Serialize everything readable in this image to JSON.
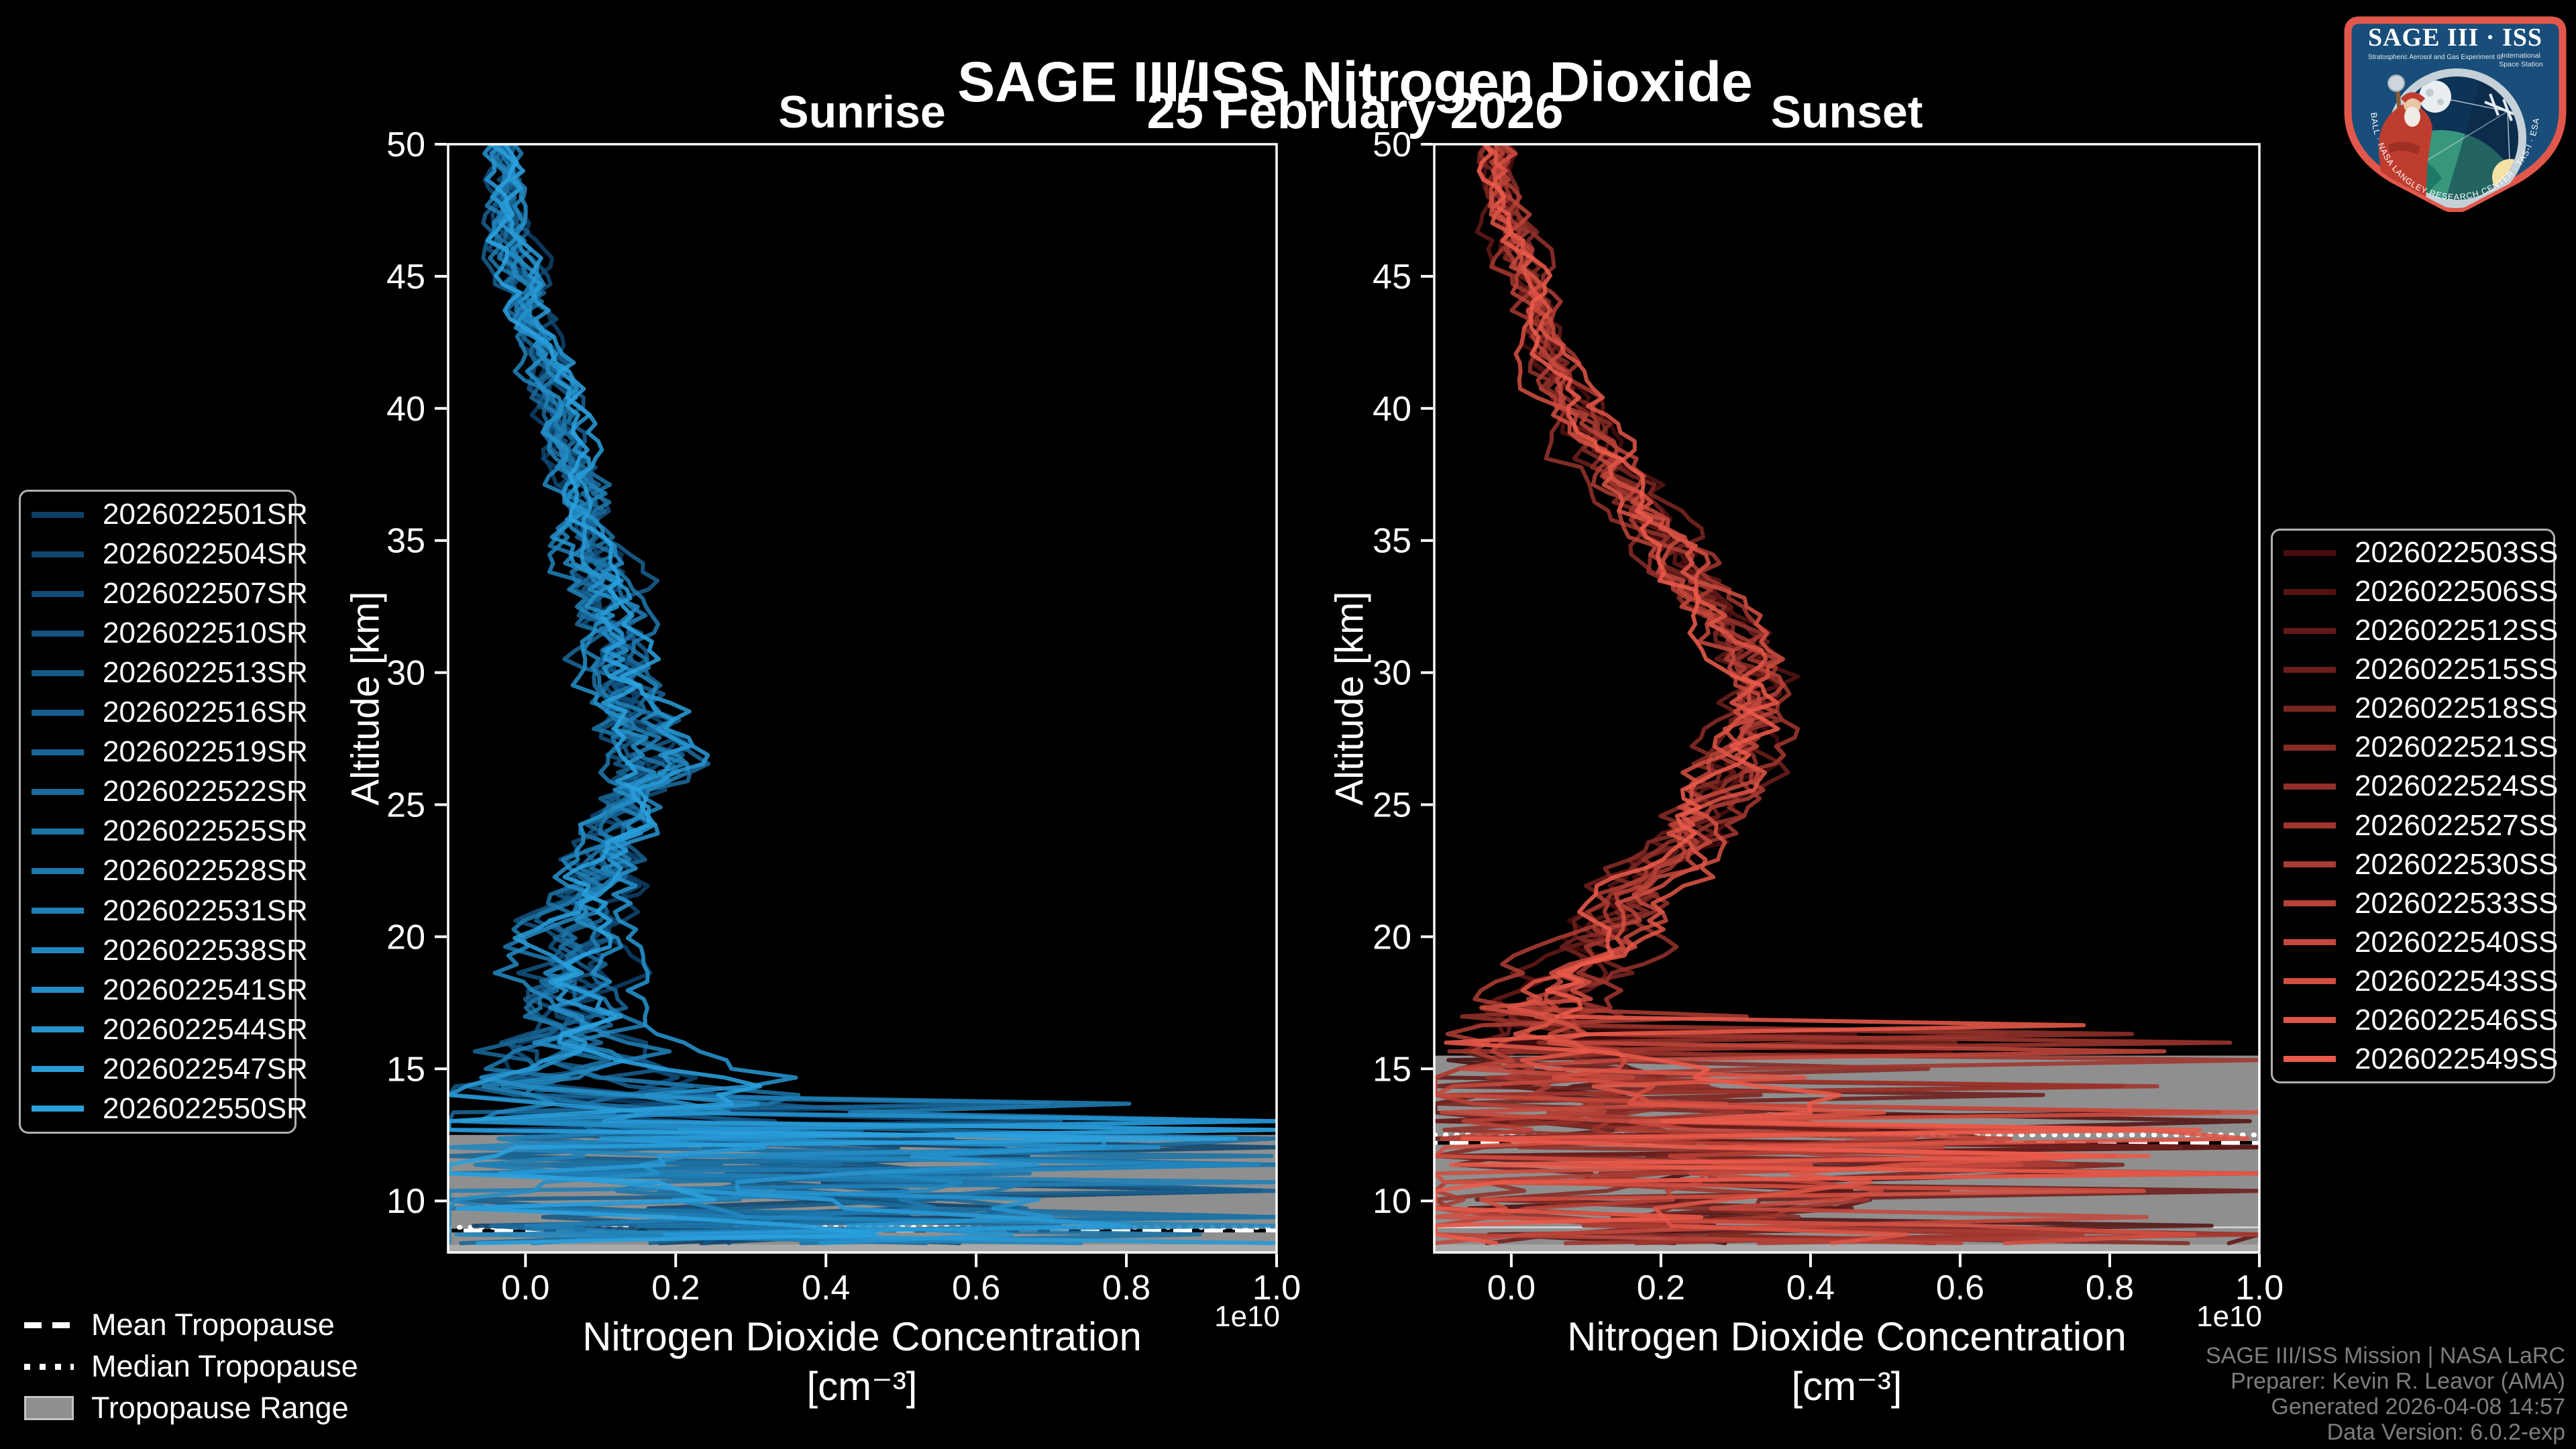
{
  "header": {
    "title": "SAGE III/ISS Nitrogen Dioxide",
    "date": "25 February 2026",
    "left_panel_label": "Sunrise",
    "right_panel_label": "Sunset"
  },
  "axes": {
    "ylabel": "Altitude [km]",
    "xlabel_line1": "Nitrogen Dioxide Concentration",
    "xlabel_line2": "[cm⁻³]",
    "offset_label": "1e10",
    "xlim": [
      -0.103,
      1.0
    ],
    "ylim": [
      8.05,
      50
    ],
    "x_ticks": [
      0.0,
      0.2,
      0.4,
      0.6,
      0.8,
      1.0
    ],
    "x_tick_labels": [
      "0.0",
      "0.2",
      "0.4",
      "0.6",
      "0.8",
      "1.0"
    ],
    "y_ticks": [
      50,
      45,
      40,
      35,
      30,
      25,
      20,
      15,
      10
    ],
    "y_tick_labels": [
      "50",
      "45",
      "40",
      "35",
      "30",
      "25",
      "20",
      "15",
      "10"
    ]
  },
  "colors": {
    "background": "#000000",
    "frame": "#ffffff",
    "text": "#ffffff",
    "footer_text": "#7d7d7d",
    "legend_border": "#b0b0b0",
    "tropopause_range": "#8f8f8f"
  },
  "tropopause_legend": {
    "mean_label": "Mean Tropopause",
    "median_label": "Median Tropopause",
    "range_label": "Tropopause Range"
  },
  "footer": {
    "lines": [
      "SAGE III/ISS Mission | NASA LaRC",
      "Preparer: Kevin R. Leavor (AMA)",
      "Generated 2026-04-08 14:57",
      "Data Version: 6.0.2-exp"
    ]
  },
  "logo": {
    "title": "SAGE III · ISS",
    "subtitle_left": "Stratospheric Aerosol and Gas Experiment III",
    "subtitle_right_1": "International",
    "subtitle_right_2": "Space Station",
    "ring_text": "BALL · NASA LANGLEY RESEARCH CENTER · TAS-I · ESA"
  },
  "chart_data": [
    {
      "type": "line",
      "panel": "Sunrise",
      "xlabel": "Nitrogen Dioxide Concentration [cm⁻³] (1e10)",
      "ylabel": "Altitude [km]",
      "series": [
        "2026022501SR",
        "2026022504SR",
        "2026022507SR",
        "2026022510SR",
        "2026022513SR",
        "2026022516SR",
        "2026022519SR",
        "2026022522SR",
        "2026022525SR",
        "2026022528SR",
        "2026022531SR",
        "2026022538SR",
        "2026022541SR",
        "2026022544SR",
        "2026022547SR",
        "2026022550SR"
      ],
      "color_start": "#0d3f66",
      "color_end": "#2aa0de",
      "line_alpha": 0.88,
      "profile": {
        "alt": [
          8.0,
          9,
          10,
          11,
          12,
          13,
          14,
          15,
          16,
          17.5,
          19,
          21,
          23,
          25,
          26.5,
          28,
          30,
          32,
          35,
          38,
          41,
          44,
          47,
          50
        ],
        "value": [
          0.14,
          0.15,
          0.16,
          0.17,
          0.18,
          0.16,
          0.12,
          0.08,
          0.05,
          0.04,
          0.06,
          0.09,
          0.11,
          0.15,
          0.18,
          0.16,
          0.14,
          0.12,
          0.09,
          0.06,
          0.03,
          0.0,
          -0.02,
          -0.03
        ]
      },
      "noise": {
        "alt": [
          8.0,
          9.5,
          11,
          12,
          13,
          14,
          15,
          16,
          17,
          18,
          21,
          24,
          27,
          30,
          35,
          40,
          45,
          50
        ],
        "amp": [
          0.36,
          0.42,
          0.45,
          0.45,
          0.4,
          0.26,
          0.15,
          0.1,
          0.08,
          0.075,
          0.07,
          0.06,
          0.07,
          0.06,
          0.045,
          0.035,
          0.032,
          0.03
        ]
      },
      "spikes": {
        "below_alt": 14.0,
        "prob": 0.2,
        "heavy_below": 13.0,
        "heavy_prob": 0.45,
        "max": 1.05,
        "neg_prob": 0.05
      },
      "tropopause": {
        "range_top": 12.5,
        "range_bottom": 8.05,
        "range_color": "#8f8f8f",
        "light_strip_top": 8.35,
        "light_strip_color": "#a9a9a9",
        "mean": 8.88,
        "median": 9.0
      }
    },
    {
      "type": "line",
      "panel": "Sunset",
      "xlabel": "Nitrogen Dioxide Concentration [cm⁻³] (1e10)",
      "ylabel": "Altitude [km]",
      "series": [
        "2026022503SS",
        "2026022506SS",
        "2026022512SS",
        "2026022515SS",
        "2026022518SS",
        "2026022521SS",
        "2026022524SS",
        "2026022527SS",
        "2026022530SS",
        "2026022533SS",
        "2026022540SS",
        "2026022543SS",
        "2026022546SS",
        "2026022549SS"
      ],
      "color_start": "#470d0e",
      "color_end": "#ea5a4a",
      "line_alpha": 0.88,
      "profile": {
        "alt": [
          8.0,
          9,
          10,
          11,
          12,
          13,
          14,
          15,
          16,
          17,
          18.5,
          20,
          22,
          24,
          26,
          28,
          29.5,
          31,
          33,
          35,
          38,
          41,
          44,
          47,
          50
        ],
        "value": [
          0.14,
          0.15,
          0.15,
          0.16,
          0.17,
          0.15,
          0.13,
          0.1,
          0.08,
          0.07,
          0.08,
          0.12,
          0.18,
          0.25,
          0.3,
          0.33,
          0.34,
          0.31,
          0.26,
          0.21,
          0.13,
          0.07,
          0.03,
          0.0,
          -0.02
        ]
      },
      "noise": {
        "alt": [
          8.0,
          9.5,
          11,
          12,
          13,
          14,
          15,
          16,
          17,
          18,
          21,
          24,
          27,
          30,
          35,
          40,
          45,
          50
        ],
        "amp": [
          0.38,
          0.42,
          0.45,
          0.44,
          0.4,
          0.3,
          0.2,
          0.13,
          0.1,
          0.085,
          0.075,
          0.065,
          0.06,
          0.055,
          0.05,
          0.04,
          0.033,
          0.03
        ]
      },
      "spikes": {
        "below_alt": 17.6,
        "prob": 0.14,
        "heavy_below": 13.0,
        "heavy_prob": 0.45,
        "max": 1.05,
        "neg_prob": 0.05
      },
      "tropopause": {
        "range_top": 15.5,
        "range_bottom": 8.05,
        "range_color": "#8f8f8f",
        "light_strip_top": 8.35,
        "light_strip_color": "#a9a9a9",
        "mean": 12.2,
        "median": 12.5,
        "edge_line": 9.0,
        "edge_line_color": "#d6d6d6"
      }
    }
  ]
}
